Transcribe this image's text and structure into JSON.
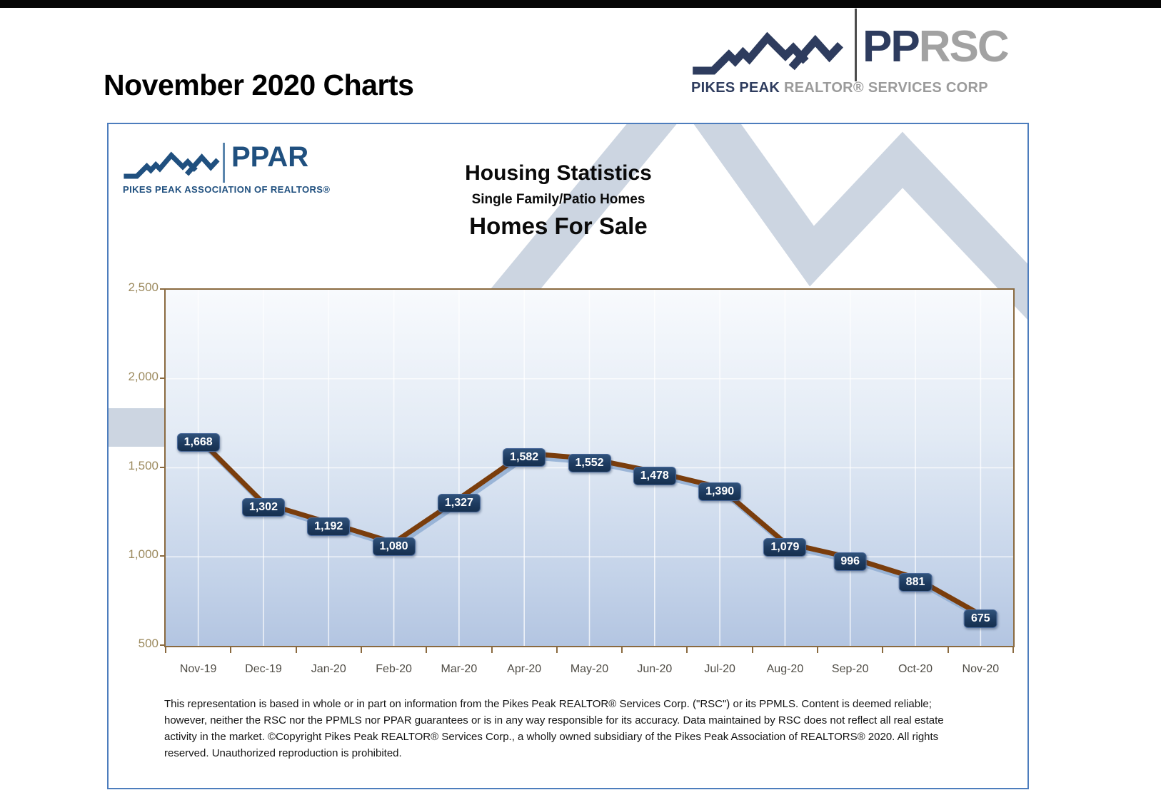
{
  "page": {
    "title": "November 2020 Charts"
  },
  "header_logo": {
    "icon": "mountain-range-icon",
    "pp": "PP",
    "rsc": "RSC",
    "brand_dark": "PIKES PEAK",
    "brand_light": "REALTOR® SERVICES CORP",
    "navy": "#2e3c5e",
    "gray": "#a2a2a2"
  },
  "card_logo": {
    "icon": "mountain-range-icon",
    "name": "PPAR",
    "subtext": "PIKES PEAK ASSOCIATION OF REALTORS®",
    "color": "#20507f"
  },
  "chart": {
    "title": "Housing Statistics",
    "subtitle": "Single Family/Patio Homes",
    "series_title": "Homes For Sale"
  },
  "chart_data": {
    "type": "line",
    "title": "Homes For Sale",
    "categories": [
      "Nov-19",
      "Dec-19",
      "Jan-20",
      "Feb-20",
      "Mar-20",
      "Apr-20",
      "May-20",
      "Jun-20",
      "Jul-20",
      "Aug-20",
      "Sep-20",
      "Oct-20",
      "Nov-20"
    ],
    "values": [
      1668,
      1302,
      1192,
      1080,
      1327,
      1582,
      1552,
      1478,
      1390,
      1079,
      996,
      881,
      675
    ],
    "value_labels": [
      "1,668",
      "1,302",
      "1,192",
      "1,080",
      "1,327",
      "1,582",
      "1,552",
      "1,478",
      "1,390",
      "1,079",
      "996",
      "881",
      "675"
    ],
    "yticks": [
      500,
      1000,
      1500,
      2000,
      2500
    ],
    "ytick_labels": [
      "500",
      "1,000",
      "1,500",
      "2,000",
      "2,500"
    ],
    "ylim": [
      500,
      2500
    ],
    "xlabel": "",
    "ylabel": "",
    "legend": "none",
    "grid": "white vertical and horizontal gridlines",
    "line_color": "#7a3d0c",
    "line_shadow_color": "#8fadd2",
    "label_box_color": "#1d3a5f",
    "plot_border_color": "#8a6a40",
    "ytick_color": "#9c8a5e",
    "xtick_color": "#504d46"
  },
  "disclaimer": {
    "text": "This representation is based in whole or in part on information from the Pikes Peak REALTOR® Services Corp.  (\"RSC\") or its PPMLS.  Content is deemed reliable; however, neither the RSC nor the PPMLS nor PPAR guarantees or is in any way responsible for its accuracy.  Data maintained by RSC does not reflect all real estate activity in the market.  ©Copyright Pikes Peak REALTOR® Services Corp., a wholly owned subsidiary of the Pikes Peak Association of REALTORS® 2020.  All rights reserved.  Unauthorized reproduction is prohibited."
  }
}
